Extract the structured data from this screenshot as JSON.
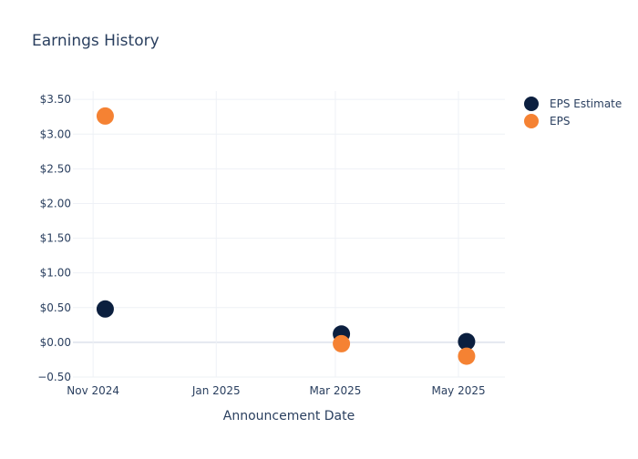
{
  "chart_data": {
    "type": "scatter",
    "title": "Earnings History",
    "xlabel": "Announcement Date",
    "ylabel": "",
    "x_tick_labels": [
      "Nov 2024",
      "Jan 2025",
      "Mar 2025",
      "May 2025"
    ],
    "x_tick_dates": [
      "2024-11-01",
      "2025-01-01",
      "2025-03-01",
      "2025-05-01"
    ],
    "x_range": [
      "2024-10-22",
      "2025-05-24"
    ],
    "y_tick_values": [
      -0.5,
      0,
      0.5,
      1,
      1.5,
      2,
      2.5,
      3,
      3.5
    ],
    "y_tick_labels": [
      "−0.50",
      "$0.00",
      "$0.50",
      "$1.00",
      "$1.50",
      "$2.00",
      "$2.50",
      "$3.00",
      "$3.50"
    ],
    "ylim": [
      -0.5,
      3.62
    ],
    "grid": true,
    "legend_position": "top-right",
    "series": [
      {
        "name": "EPS Estimate",
        "color": "#0b1f3f",
        "points": [
          {
            "x": "2024-11-07",
            "y": 0.48
          },
          {
            "x": "2025-03-04",
            "y": 0.12
          },
          {
            "x": "2025-05-05",
            "y": 0.01
          }
        ]
      },
      {
        "name": "EPS",
        "color": "#f58233",
        "points": [
          {
            "x": "2024-11-07",
            "y": 3.26
          },
          {
            "x": "2025-03-04",
            "y": -0.02
          },
          {
            "x": "2025-05-05",
            "y": -0.2
          }
        ]
      }
    ]
  }
}
